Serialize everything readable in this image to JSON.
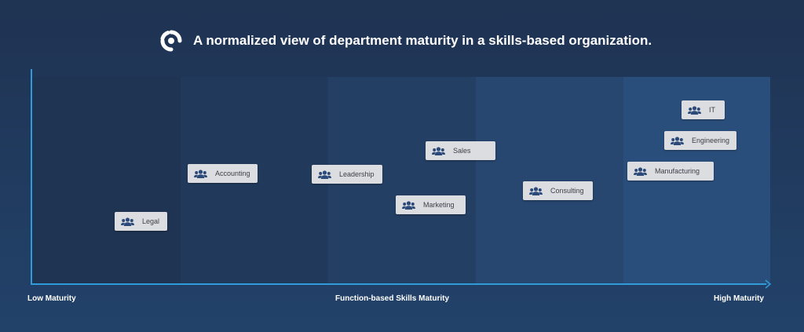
{
  "header": {
    "title": "A normalized view of department maturity in a skills-based organization."
  },
  "axis": {
    "low_label": "Low Maturity",
    "mid_label": "Function-based Skills Maturity",
    "high_label": "High Maturity"
  },
  "colors": {
    "axis": "#2f9bd8",
    "card": "#dcdde0",
    "icon": "#2b4a7a",
    "bands": [
      "#1f3452",
      "#213a5c",
      "#243f64",
      "#274670",
      "#2a4e7c"
    ]
  },
  "icons": {
    "logo": "brand-logo-icon",
    "department": "people-group-icon"
  },
  "departments": [
    {
      "label": "Legal"
    },
    {
      "label": "Accounting"
    },
    {
      "label": "Leadership"
    },
    {
      "label": "Sales"
    },
    {
      "label": "Marketing"
    },
    {
      "label": "Consulting"
    },
    {
      "label": "IT"
    },
    {
      "label": "Engineering"
    },
    {
      "label": "Manufacturing"
    }
  ]
}
